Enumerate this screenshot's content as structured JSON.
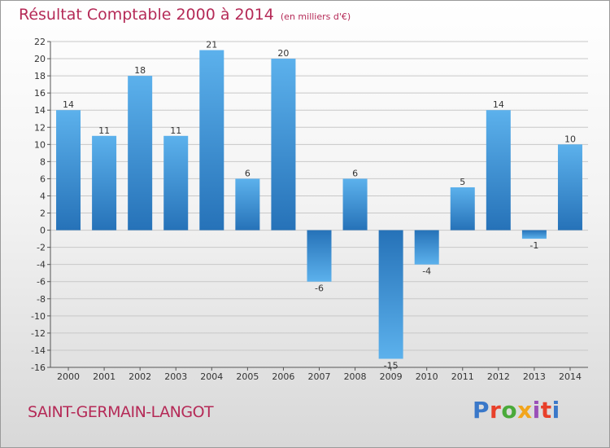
{
  "header": {
    "title": "Résultat Comptable 2000 à 2014",
    "subtitle": "(en milliers d'€)"
  },
  "footer": {
    "town": "SAINT-GERMAIN-LANGOT",
    "brand": "Proxiti",
    "brand_colors": [
      "#3a78c9",
      "#e8402a",
      "#4aaa3a",
      "#f2a51c",
      "#9a4fb8",
      "#e8402a",
      "#3a78c9"
    ]
  },
  "colors": {
    "title": "#b52a57",
    "bar_light": "#5cb1ec",
    "bar_dark": "#2672b8",
    "grid": "#c8c8c8"
  },
  "chart_data": {
    "type": "bar",
    "title": "Résultat Comptable 2000 à 2014",
    "subtitle": "(en milliers d'€)",
    "categories": [
      "2000",
      "2001",
      "2002",
      "2003",
      "2004",
      "2005",
      "2006",
      "2007",
      "2008",
      "2009",
      "2010",
      "2011",
      "2012",
      "2013",
      "2014"
    ],
    "values": [
      14,
      11,
      18,
      11,
      21,
      6,
      20,
      -6,
      6,
      -15,
      -4,
      5,
      14,
      -1,
      10
    ],
    "data_labels": [
      "14",
      "11",
      "18",
      "11",
      "21",
      "6",
      "20",
      "-6",
      "6",
      "-15",
      "-4",
      "5",
      "14",
      "-1",
      "10"
    ],
    "ylim": [
      -16,
      22
    ],
    "yticks": [
      22,
      20,
      18,
      16,
      14,
      12,
      10,
      8,
      6,
      4,
      2,
      0,
      -2,
      -4,
      -6,
      -8,
      -10,
      -12,
      -14,
      -16
    ],
    "grid": true,
    "xlabel": "",
    "ylabel": ""
  }
}
